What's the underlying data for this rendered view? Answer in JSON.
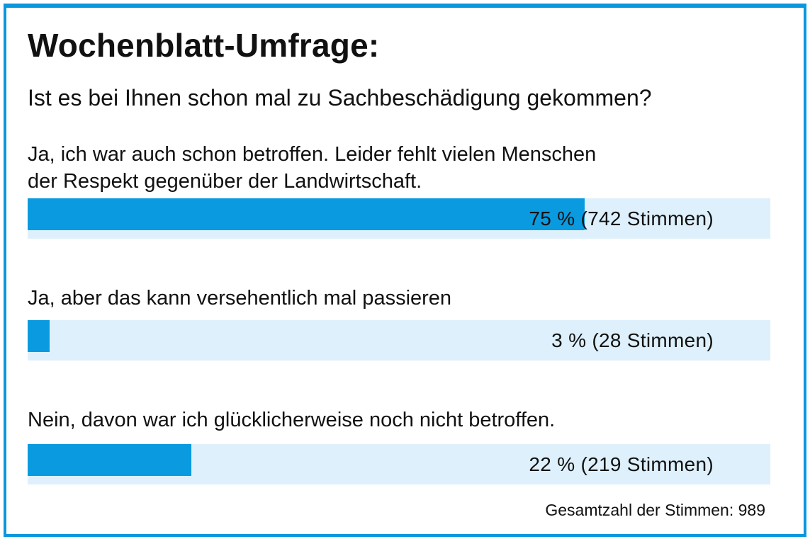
{
  "colors": {
    "frame": "#0a97de",
    "bar_fill": "#0a9ae0",
    "bar_track": "#def0fb",
    "text": "#111111"
  },
  "chart_data": {
    "type": "bar",
    "orientation": "horizontal",
    "title": "Wochenblatt-Umfrage:",
    "subtitle": "Ist es bei Ihnen schon mal zu Sachbeschädigung gekommen?",
    "xlim": [
      0,
      100
    ],
    "grid": false,
    "categories": [
      "Ja, ich war auch schon betroffen. Leider fehlt vielen Menschen\nder Respekt gegenüber der Landwirtschaft.",
      "Ja, aber das kann versehentlich mal passieren",
      "Nein, davon war ich glücklicherweise noch nicht betroffen."
    ],
    "values": [
      75,
      3,
      22
    ],
    "votes": [
      742,
      28,
      219
    ],
    "value_labels": [
      "75 % (742 Stimmen)",
      "3 % (28 Stimmen)",
      "22 % (219 Stimmen)"
    ],
    "total_label": "Gesamtzahl der Stimmen: 989"
  }
}
